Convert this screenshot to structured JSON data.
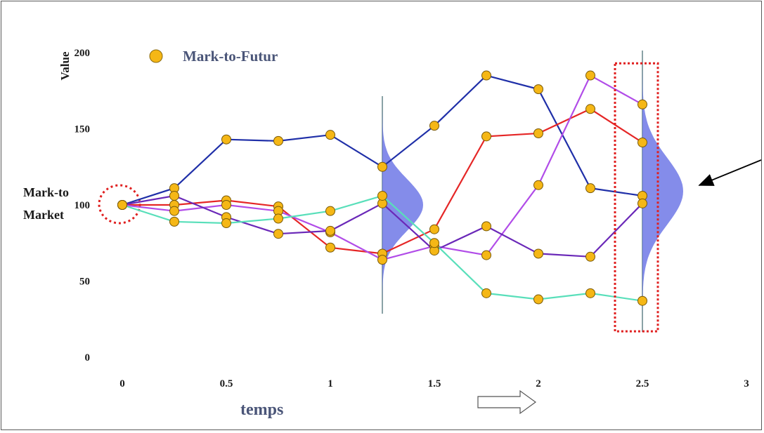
{
  "chart_data": {
    "type": "line",
    "ylabel": "Value",
    "xlabel": "temps",
    "xlim": [
      0,
      3
    ],
    "ylim": [
      0,
      200
    ],
    "xticks": [
      "0",
      "0.5",
      "1",
      "1.5",
      "2",
      "2.5",
      "3"
    ],
    "yticks": [
      "0",
      "50",
      "100",
      "150",
      "200"
    ],
    "legend": {
      "label": "Mark-to-Futur",
      "position": "top-left"
    },
    "annotation_mtm_line1": "Mark-to",
    "annotation_mtm_line2": "Market",
    "x": [
      0,
      0.25,
      0.5,
      0.75,
      1,
      1.25,
      1.5,
      1.75,
      2,
      2.25,
      2.5
    ],
    "series": [
      {
        "color": "#1f2fa8",
        "values": [
          100,
          111,
          143,
          142,
          146,
          125,
          152,
          185,
          176,
          111,
          106
        ]
      },
      {
        "color": "#e52626",
        "values": [
          100,
          100,
          103,
          99,
          72,
          68,
          84,
          145,
          147,
          163,
          141
        ]
      },
      {
        "color": "#b14ce8",
        "values": [
          100,
          96,
          100,
          96,
          82,
          64,
          73,
          67,
          113,
          185,
          166
        ]
      },
      {
        "color": "#6a28b8",
        "values": [
          100,
          106,
          92,
          81,
          83,
          101,
          70,
          86,
          68,
          66,
          101
        ]
      },
      {
        "color": "#59dfba",
        "values": [
          100,
          89,
          88,
          91,
          96,
          106,
          75,
          42,
          38,
          42,
          37
        ]
      }
    ],
    "distributions": [
      {
        "x": 1.25,
        "mean": 100,
        "sd": 17,
        "color": "#6f78e6"
      },
      {
        "x": 2.5,
        "mean": 109,
        "sd": 22,
        "color": "#6f78e6"
      }
    ],
    "marker_color": "#f5b716",
    "highlight_x": 2.5
  }
}
